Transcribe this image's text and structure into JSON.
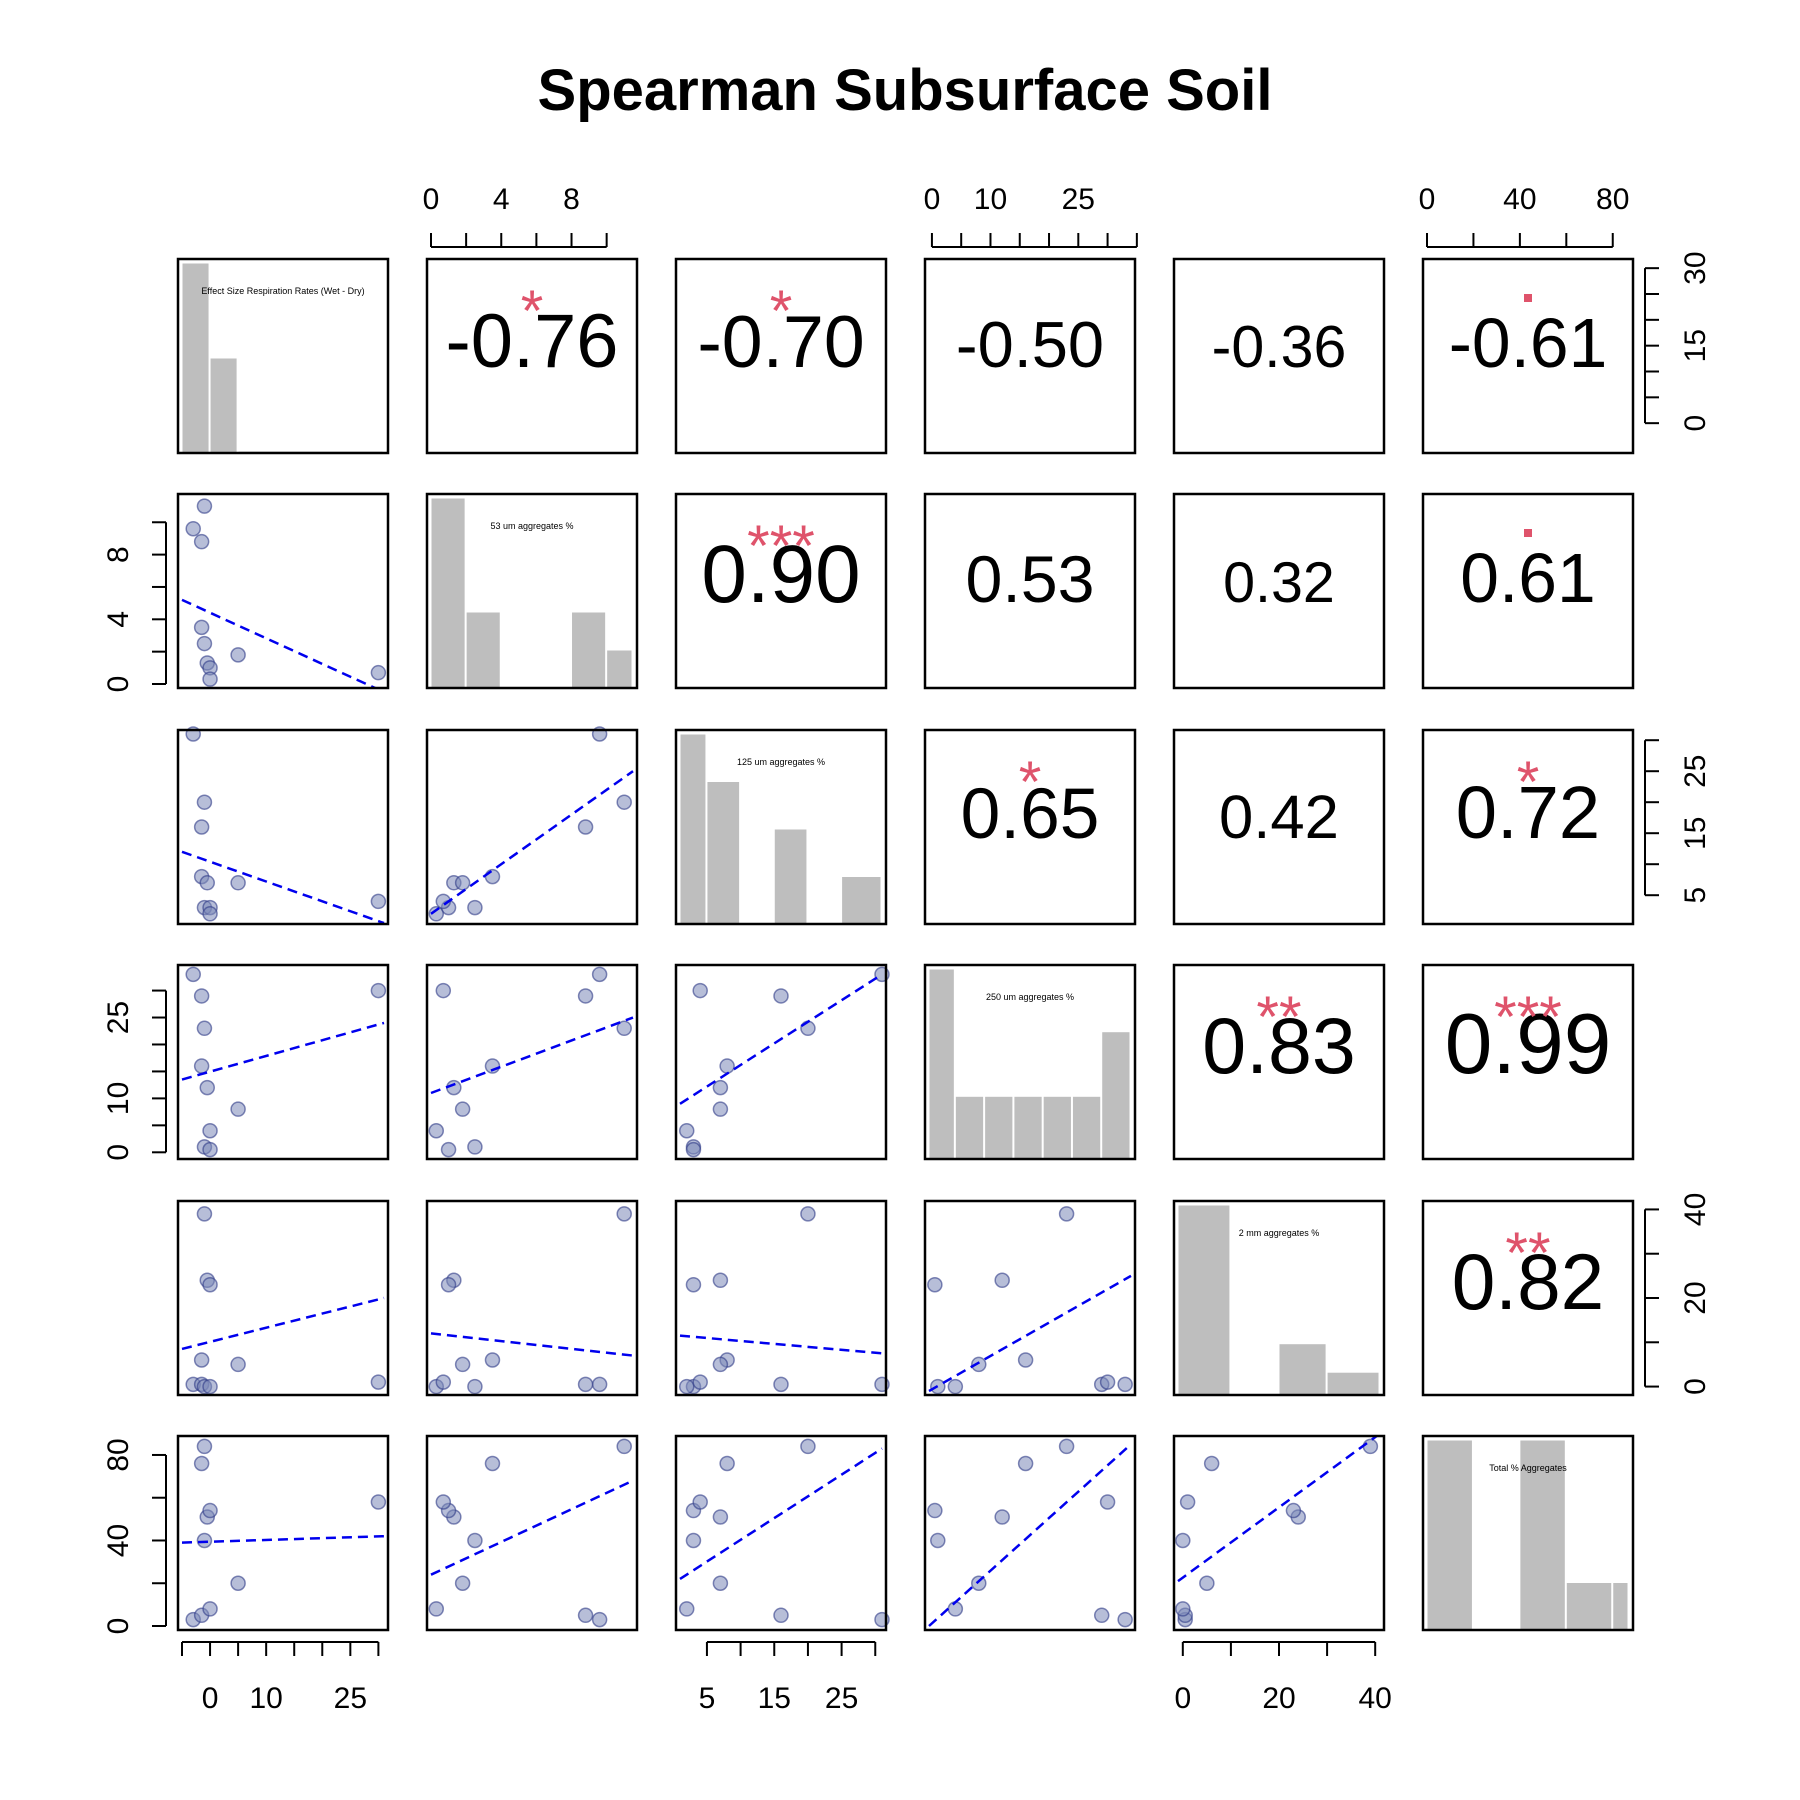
{
  "chart_data": {
    "type": "scatter-matrix",
    "title": "Spearman Subsurface Soil",
    "variables": [
      "Effect Size Respiration Rates (Wet - Dry)",
      "53 um aggregates %",
      "125 um aggregates %",
      "250 um aggregates %",
      "2 mm aggregates %",
      "Total % Aggregates"
    ],
    "ranges": [
      [
        -5,
        31
      ],
      [
        0,
        11.5
      ],
      [
        1,
        31
      ],
      [
        -0.5,
        34
      ],
      [
        -1,
        41
      ],
      [
        0,
        87
      ]
    ],
    "points": [
      [
        -3,
        9.6,
        31,
        33,
        0.5,
        3
      ],
      [
        -1.5,
        8.8,
        16,
        29,
        0.5,
        5
      ],
      [
        -1,
        11,
        20,
        23,
        39,
        84
      ],
      [
        -1.5,
        3.5,
        8,
        16,
        6,
        76
      ],
      [
        -1,
        2.5,
        3,
        1,
        0,
        40
      ],
      [
        -0.5,
        1.3,
        7,
        12,
        24,
        51
      ],
      [
        0,
        1.0,
        3,
        0.5,
        23,
        54
      ],
      [
        0,
        0.3,
        2,
        4,
        0,
        8
      ],
      [
        5,
        1.8,
        7,
        8,
        5,
        20
      ],
      [
        30,
        0.7,
        4,
        30,
        1,
        58
      ]
    ],
    "fit_lines": [
      {
        "row": 1,
        "col": 0,
        "x": [
          -5,
          31
        ],
        "y": [
          5.2,
          -0.5
        ]
      },
      {
        "row": 2,
        "col": 0,
        "x": [
          -5,
          31
        ],
        "y": [
          12,
          0.5
        ]
      },
      {
        "row": 2,
        "col": 1,
        "x": [
          0,
          11.5
        ],
        "y": [
          2,
          25
        ]
      },
      {
        "row": 3,
        "col": 0,
        "x": [
          -5,
          31
        ],
        "y": [
          13.5,
          24
        ]
      },
      {
        "row": 3,
        "col": 1,
        "x": [
          0,
          11.5
        ],
        "y": [
          11,
          25
        ]
      },
      {
        "row": 3,
        "col": 2,
        "x": [
          1,
          31
        ],
        "y": [
          9,
          33
        ]
      },
      {
        "row": 4,
        "col": 0,
        "x": [
          -5,
          31
        ],
        "y": [
          8.5,
          20
        ]
      },
      {
        "row": 4,
        "col": 1,
        "x": [
          0,
          11.5
        ],
        "y": [
          12,
          7
        ]
      },
      {
        "row": 4,
        "col": 2,
        "x": [
          1,
          31
        ],
        "y": [
          11.5,
          7.5
        ]
      },
      {
        "row": 4,
        "col": 3,
        "x": [
          -0.5,
          34
        ],
        "y": [
          -1,
          25
        ]
      },
      {
        "row": 5,
        "col": 0,
        "x": [
          -5,
          31
        ],
        "y": [
          39,
          42
        ]
      },
      {
        "row": 5,
        "col": 1,
        "x": [
          0,
          11.5
        ],
        "y": [
          24,
          68
        ]
      },
      {
        "row": 5,
        "col": 2,
        "x": [
          1,
          31
        ],
        "y": [
          22,
          83
        ]
      },
      {
        "row": 5,
        "col": 3,
        "x": [
          -0.5,
          34
        ],
        "y": [
          0,
          85
        ]
      },
      {
        "row": 5,
        "col": 4,
        "x": [
          -1,
          41
        ],
        "y": [
          21,
          90
        ]
      }
    ],
    "correlations": [
      {
        "row": 0,
        "col": 1,
        "value": "-0.76",
        "stars": "*"
      },
      {
        "row": 0,
        "col": 2,
        "value": "-0.70",
        "stars": "*"
      },
      {
        "row": 0,
        "col": 3,
        "value": "-0.50",
        "stars": ""
      },
      {
        "row": 0,
        "col": 4,
        "value": "-0.36",
        "stars": ""
      },
      {
        "row": 0,
        "col": 5,
        "value": "-0.61",
        "stars": "·"
      },
      {
        "row": 1,
        "col": 2,
        "value": "0.90",
        "stars": "***"
      },
      {
        "row": 1,
        "col": 3,
        "value": "0.53",
        "stars": ""
      },
      {
        "row": 1,
        "col": 4,
        "value": "0.32",
        "stars": ""
      },
      {
        "row": 1,
        "col": 5,
        "value": "0.61",
        "stars": "·"
      },
      {
        "row": 2,
        "col": 3,
        "value": "0.65",
        "stars": "*"
      },
      {
        "row": 2,
        "col": 4,
        "value": "0.42",
        "stars": ""
      },
      {
        "row": 2,
        "col": 5,
        "value": "0.72",
        "stars": "*"
      },
      {
        "row": 3,
        "col": 4,
        "value": "0.83",
        "stars": "**"
      },
      {
        "row": 3,
        "col": 5,
        "value": "0.99",
        "stars": "***"
      },
      {
        "row": 4,
        "col": 5,
        "value": "0.82",
        "stars": "**"
      }
    ],
    "histograms": [
      {
        "var": 0,
        "bins": [
          [
            -5,
            0,
            1.0
          ],
          [
            0,
            5,
            0.5
          ],
          [
            5,
            31,
            0.01
          ]
        ]
      },
      {
        "var": 1,
        "bins": [
          [
            0,
            2,
            1.0
          ],
          [
            2,
            4,
            0.4
          ],
          [
            8,
            10,
            0.4
          ],
          [
            10,
            11.5,
            0.2
          ]
        ]
      },
      {
        "var": 2,
        "bins": [
          [
            1,
            5,
            1.0
          ],
          [
            5,
            10,
            0.75
          ],
          [
            15,
            20,
            0.5
          ],
          [
            25,
            31,
            0.25
          ]
        ]
      },
      {
        "var": 3,
        "bins": [
          [
            -0.5,
            4,
            1.0
          ],
          [
            4,
            9,
            0.33
          ],
          [
            9,
            14,
            0.33
          ],
          [
            14,
            19,
            0.33
          ],
          [
            19,
            24,
            0.33
          ],
          [
            24,
            29,
            0.33
          ],
          [
            29,
            34,
            0.67
          ]
        ]
      },
      {
        "var": 4,
        "bins": [
          [
            -1,
            10,
            1.0
          ],
          [
            20,
            30,
            0.27
          ],
          [
            30,
            41,
            0.12
          ]
        ]
      },
      {
        "var": 5,
        "bins": [
          [
            0,
            20,
            1.0
          ],
          [
            40,
            60,
            1.0
          ],
          [
            60,
            80,
            0.25
          ],
          [
            80,
            87,
            0.25
          ]
        ]
      }
    ],
    "top_axes": [
      {
        "col": 1,
        "ticks": [
          0,
          2,
          4,
          6,
          8,
          10
        ],
        "labels": [
          "0",
          "4",
          "8"
        ],
        "label_values": [
          0,
          4,
          8
        ]
      },
      {
        "col": 3,
        "ticks": [
          0,
          5,
          10,
          15,
          20,
          25,
          30,
          35
        ],
        "labels": [
          "0",
          "10",
          "25"
        ],
        "label_values": [
          0,
          10,
          25
        ]
      },
      {
        "col": 5,
        "ticks": [
          0,
          20,
          40,
          60,
          80
        ],
        "labels": [
          "0",
          "40",
          "80"
        ],
        "label_values": [
          0,
          40,
          80
        ]
      }
    ],
    "bottom_axes": [
      {
        "col": 0,
        "ticks": [
          -5,
          0,
          5,
          10,
          15,
          20,
          25,
          30
        ],
        "labels": [
          "0",
          "10",
          "25"
        ],
        "label_values": [
          0,
          10,
          25
        ]
      },
      {
        "col": 2,
        "ticks": [
          5,
          10,
          15,
          20,
          25,
          30
        ],
        "labels": [
          "5",
          "15",
          "25"
        ],
        "label_values": [
          5,
          15,
          25
        ]
      },
      {
        "col": 4,
        "ticks": [
          0,
          10,
          20,
          30,
          40
        ],
        "labels": [
          "0",
          "20",
          "40"
        ],
        "label_values": [
          0,
          20,
          40
        ]
      }
    ],
    "left_axes": [
      {
        "row": 1,
        "ticks": [
          0,
          2,
          4,
          6,
          8,
          10
        ],
        "labels": [
          "0",
          "4",
          "8"
        ],
        "label_values": [
          0,
          4,
          8
        ]
      },
      {
        "row": 3,
        "ticks": [
          0,
          5,
          10,
          15,
          20,
          25,
          30
        ],
        "labels": [
          "0",
          "10",
          "25"
        ],
        "label_values": [
          0,
          10,
          25
        ]
      },
      {
        "row": 5,
        "ticks": [
          0,
          20,
          40,
          60,
          80
        ],
        "labels": [
          "0",
          "40",
          "80"
        ],
        "label_values": [
          0,
          40,
          80
        ]
      }
    ],
    "right_axes": [
      {
        "row": 0,
        "ticks": [
          0,
          5,
          10,
          15,
          20,
          25,
          30
        ],
        "labels": [
          "0",
          "15",
          "30"
        ],
        "label_values": [
          0,
          15,
          30
        ]
      },
      {
        "row": 2,
        "ticks": [
          5,
          10,
          15,
          20,
          25,
          30
        ],
        "labels": [
          "5",
          "15",
          "25"
        ],
        "label_values": [
          5,
          15,
          25
        ]
      },
      {
        "row": 4,
        "ticks": [
          0,
          10,
          20,
          30,
          40
        ],
        "labels": [
          "0",
          "20",
          "40"
        ],
        "label_values": [
          0,
          20,
          40
        ]
      }
    ],
    "colors": {
      "point_fill": "#7C88B8",
      "point_stroke": "#2E3A87",
      "fit_line": "#0000EE",
      "histogram_bar": "#BEBEBE",
      "stars": "#DF536B",
      "text": "#000000"
    }
  }
}
